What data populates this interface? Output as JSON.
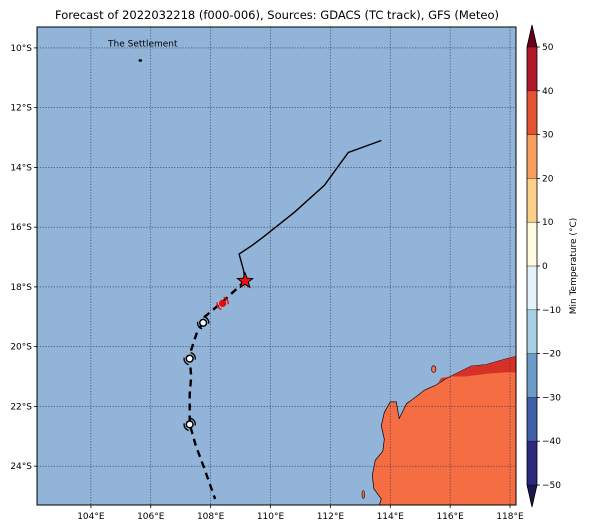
{
  "title": "Forecast of 2022032218 (f000-006), Sources: GDACS (TC track), GFS (Meteo)",
  "map": {
    "lon_range": [
      102.2,
      118.2
    ],
    "lat_range": [
      -25.3,
      -9.3
    ],
    "ocean_color": "#92b4d8",
    "land_color": "#f46d43",
    "coast_north_color": "#d73027",
    "grid_style": "dotted",
    "lon_ticks": [
      {
        "value": 104,
        "label": "104°E"
      },
      {
        "value": 106,
        "label": "106°E"
      },
      {
        "value": 108,
        "label": "108°E"
      },
      {
        "value": 110,
        "label": "110°E"
      },
      {
        "value": 112,
        "label": "112°E"
      },
      {
        "value": 114,
        "label": "114°E"
      },
      {
        "value": 116,
        "label": "116°E"
      },
      {
        "value": 118,
        "label": "118°E"
      }
    ],
    "lat_ticks": [
      {
        "value": -10,
        "label": "10°S"
      },
      {
        "value": -12,
        "label": "12°S"
      },
      {
        "value": -14,
        "label": "14°S"
      },
      {
        "value": -16,
        "label": "16°S"
      },
      {
        "value": -18,
        "label": "18°S"
      },
      {
        "value": -20,
        "label": "20°S"
      },
      {
        "value": -22,
        "label": "22°S"
      },
      {
        "value": -24,
        "label": "24°S"
      }
    ],
    "place_label": {
      "text": "The Settlement",
      "lon": 105.6,
      "lat": -10.45
    }
  },
  "track": {
    "past": [
      [
        113.7,
        -13.1
      ],
      [
        112.6,
        -13.5
      ],
      [
        111.8,
        -14.6
      ],
      [
        110.8,
        -15.5
      ],
      [
        109.8,
        -16.3
      ],
      [
        109.4,
        -16.6
      ],
      [
        108.95,
        -16.9
      ],
      [
        109.1,
        -17.45
      ],
      [
        109.15,
        -17.8
      ]
    ],
    "current": {
      "lon": 109.15,
      "lat": -17.8
    },
    "forecast": [
      [
        109.15,
        -17.8
      ],
      [
        108.4,
        -18.5
      ],
      [
        107.8,
        -19.0
      ],
      [
        107.75,
        -19.2
      ],
      [
        107.55,
        -19.5
      ],
      [
        107.35,
        -20.1
      ],
      [
        107.3,
        -20.4
      ],
      [
        107.35,
        -21.0
      ],
      [
        107.3,
        -21.6
      ],
      [
        107.3,
        -22.6
      ],
      [
        107.5,
        -23.3
      ],
      [
        107.8,
        -24.1
      ],
      [
        108.15,
        -25.1
      ]
    ],
    "markers": [
      {
        "lon": 108.4,
        "lat": -18.55,
        "color": "#ff0000"
      },
      {
        "lon": 107.75,
        "lat": -19.2,
        "color": "#000000"
      },
      {
        "lon": 107.3,
        "lat": -20.4,
        "color": "#000000"
      },
      {
        "lon": 107.3,
        "lat": -22.6,
        "color": "#000000"
      }
    ]
  },
  "colorbar": {
    "label": "Min Temperature (°C)",
    "min": -50,
    "max": 50,
    "ticks": [
      {
        "value": 50,
        "label": "50"
      },
      {
        "value": 40,
        "label": "40"
      },
      {
        "value": 30,
        "label": "30"
      },
      {
        "value": 20,
        "label": "20"
      },
      {
        "value": 10,
        "label": "10"
      },
      {
        "value": 0,
        "label": "0"
      },
      {
        "value": -10,
        "label": "−10"
      },
      {
        "value": -20,
        "label": "−20"
      },
      {
        "value": -30,
        "label": "−30"
      },
      {
        "value": -40,
        "label": "−40"
      },
      {
        "value": -50,
        "label": "−50"
      }
    ],
    "bands": [
      {
        "from": -50,
        "to": -40,
        "color": "#2b2a7e"
      },
      {
        "from": -40,
        "to": -30,
        "color": "#3f5faa"
      },
      {
        "from": -30,
        "to": -20,
        "color": "#6c9bc8"
      },
      {
        "from": -20,
        "to": -10,
        "color": "#a9cfe5"
      },
      {
        "from": -10,
        "to": 0,
        "color": "#e3f3f9"
      },
      {
        "from": 0,
        "to": 10,
        "color": "#fffbe0"
      },
      {
        "from": 10,
        "to": 20,
        "color": "#fdd08a"
      },
      {
        "from": 20,
        "to": 30,
        "color": "#f99f5d"
      },
      {
        "from": 30,
        "to": 40,
        "color": "#e45232"
      },
      {
        "from": 40,
        "to": 50,
        "color": "#b2182b"
      }
    ],
    "extend_low_color": "#1c1650",
    "extend_high_color": "#67001f"
  }
}
